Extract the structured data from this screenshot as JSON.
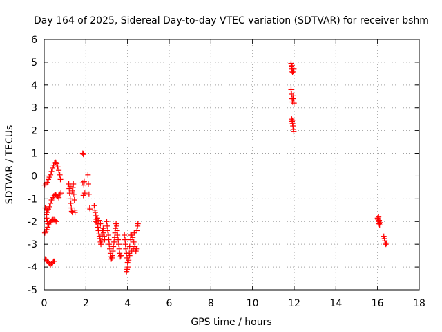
{
  "chart_data": {
    "type": "scatter",
    "title": "Day 164 of 2025, Sidereal Day-to-day VTEC variation (SDTVAR) for receiver bshm",
    "xlabel": "GPS time / hours",
    "ylabel": "SDTVAR / TECUs",
    "xlim": [
      0,
      18
    ],
    "ylim": [
      -5,
      6
    ],
    "xticks": [
      0,
      2,
      4,
      6,
      8,
      10,
      12,
      14,
      16,
      18
    ],
    "yticks": [
      -5,
      -4,
      -3,
      -2,
      -1,
      0,
      1,
      2,
      3,
      4,
      5,
      6
    ],
    "grid": true,
    "marker": "+",
    "colors": {
      "points": "#ff0000",
      "grid": "#a0a0a0",
      "axes": "#000000"
    },
    "series": [
      {
        "name": "SDTVAR",
        "points": [
          [
            0.02,
            -0.4
          ],
          [
            0.08,
            -0.35
          ],
          [
            0.14,
            -0.28
          ],
          [
            0.2,
            -0.15
          ],
          [
            0.25,
            -0.05
          ],
          [
            0.3,
            0.05
          ],
          [
            0.35,
            0.2
          ],
          [
            0.4,
            0.35
          ],
          [
            0.45,
            0.48
          ],
          [
            0.5,
            0.57
          ],
          [
            0.55,
            0.6
          ],
          [
            0.6,
            0.55
          ],
          [
            0.65,
            0.4
          ],
          [
            0.7,
            0.25
          ],
          [
            0.75,
            0.05
          ],
          [
            0.78,
            -0.15
          ],
          [
            0.05,
            -1.4
          ],
          [
            0.1,
            -1.45
          ],
          [
            0.15,
            -1.5
          ],
          [
            0.2,
            -1.45
          ],
          [
            0.25,
            -1.35
          ],
          [
            0.3,
            -1.2
          ],
          [
            0.35,
            -1.05
          ],
          [
            0.4,
            -0.95
          ],
          [
            0.45,
            -0.88
          ],
          [
            0.5,
            -0.85
          ],
          [
            0.55,
            -0.82
          ],
          [
            0.6,
            -0.85
          ],
          [
            0.65,
            -0.9
          ],
          [
            0.7,
            -0.95
          ],
          [
            0.75,
            -0.8
          ],
          [
            0.8,
            -0.75
          ],
          [
            0.03,
            -2.5
          ],
          [
            0.08,
            -2.45
          ],
          [
            0.12,
            -2.35
          ],
          [
            0.17,
            -2.25
          ],
          [
            0.22,
            -2.15
          ],
          [
            0.27,
            -2.05
          ],
          [
            0.32,
            -2.0
          ],
          [
            0.37,
            -1.95
          ],
          [
            0.42,
            -1.92
          ],
          [
            0.47,
            -1.92
          ],
          [
            0.52,
            -1.95
          ],
          [
            0.57,
            -2.0
          ],
          [
            0.05,
            -3.65
          ],
          [
            0.1,
            -3.7
          ],
          [
            0.15,
            -3.75
          ],
          [
            0.2,
            -3.8
          ],
          [
            0.25,
            -3.85
          ],
          [
            0.3,
            -3.9
          ],
          [
            0.35,
            -3.85
          ],
          [
            0.4,
            -3.8
          ],
          [
            0.45,
            -3.75
          ],
          [
            0.48,
            -3.75
          ],
          [
            0.1,
            -1.7
          ],
          [
            0.12,
            -1.85
          ],
          [
            0.15,
            -2.0
          ],
          [
            0.18,
            -2.1
          ],
          [
            0.13,
            -1.6
          ],
          [
            1.18,
            -0.35
          ],
          [
            1.2,
            -0.55
          ],
          [
            1.22,
            -0.75
          ],
          [
            1.25,
            -1.0
          ],
          [
            1.28,
            -1.2
          ],
          [
            1.3,
            -1.4
          ],
          [
            1.32,
            -1.55
          ],
          [
            1.35,
            -1.6
          ],
          [
            1.38,
            -0.5
          ],
          [
            1.4,
            -0.35
          ],
          [
            1.42,
            -0.8
          ],
          [
            1.45,
            -1.05
          ],
          [
            1.47,
            -1.5
          ],
          [
            1.48,
            -1.6
          ],
          [
            1.25,
            -0.45
          ],
          [
            1.35,
            -0.65
          ],
          [
            1.85,
            1.0
          ],
          [
            1.88,
            0.95
          ],
          [
            1.85,
            -0.3
          ],
          [
            1.9,
            -0.4
          ],
          [
            1.95,
            -0.75
          ],
          [
            1.88,
            -0.85
          ],
          [
            1.92,
            -0.25
          ],
          [
            2.1,
            0.05
          ],
          [
            2.12,
            -0.35
          ],
          [
            2.15,
            -0.8
          ],
          [
            2.18,
            -1.4
          ],
          [
            2.2,
            -1.45
          ],
          [
            2.4,
            -1.3
          ],
          [
            2.43,
            -1.5
          ],
          [
            2.45,
            -1.6
          ],
          [
            2.48,
            -1.75
          ],
          [
            2.5,
            -1.9
          ],
          [
            2.52,
            -2.05
          ],
          [
            2.55,
            -2.15
          ],
          [
            2.58,
            -2.25
          ],
          [
            2.6,
            -2.4
          ],
          [
            2.62,
            -2.55
          ],
          [
            2.65,
            -2.65
          ],
          [
            2.68,
            -2.75
          ],
          [
            2.7,
            -2.9
          ],
          [
            2.72,
            -3.0
          ],
          [
            2.75,
            -2.85
          ],
          [
            2.78,
            -2.6
          ],
          [
            2.8,
            -2.4
          ],
          [
            2.83,
            -2.3
          ],
          [
            2.85,
            -2.5
          ],
          [
            2.88,
            -2.65
          ],
          [
            2.9,
            -2.8
          ],
          [
            2.55,
            -1.85
          ],
          [
            2.62,
            -1.95
          ],
          [
            2.7,
            -2.1
          ],
          [
            2.48,
            -2.0
          ],
          [
            3.0,
            -2.0
          ],
          [
            3.02,
            -2.2
          ],
          [
            3.05,
            -2.4
          ],
          [
            3.08,
            -2.6
          ],
          [
            3.1,
            -2.8
          ],
          [
            3.12,
            -3.0
          ],
          [
            3.15,
            -3.2
          ],
          [
            3.18,
            -3.4
          ],
          [
            3.2,
            -3.55
          ],
          [
            3.22,
            -3.65
          ],
          [
            3.25,
            -3.6
          ],
          [
            3.28,
            -3.5
          ],
          [
            3.3,
            -3.3
          ],
          [
            3.32,
            -3.1
          ],
          [
            3.35,
            -2.9
          ],
          [
            3.38,
            -2.7
          ],
          [
            3.4,
            -2.5
          ],
          [
            3.42,
            -2.3
          ],
          [
            3.45,
            -2.1
          ],
          [
            3.48,
            -2.2
          ],
          [
            3.5,
            -2.4
          ],
          [
            3.52,
            -2.6
          ],
          [
            3.55,
            -2.8
          ],
          [
            3.58,
            -3.0
          ],
          [
            3.6,
            -3.2
          ],
          [
            3.62,
            -3.4
          ],
          [
            3.65,
            -3.55
          ],
          [
            3.68,
            -3.5
          ],
          [
            3.85,
            -2.6
          ],
          [
            3.88,
            -2.8
          ],
          [
            3.9,
            -3.0
          ],
          [
            3.92,
            -3.2
          ],
          [
            3.95,
            -3.4
          ],
          [
            3.98,
            -3.6
          ],
          [
            4.0,
            -3.8
          ],
          [
            4.02,
            -4.0
          ],
          [
            3.95,
            -4.2
          ],
          [
            3.98,
            -4.1
          ],
          [
            4.05,
            -3.7
          ],
          [
            4.08,
            -3.4
          ],
          [
            4.1,
            -3.1
          ],
          [
            4.15,
            -2.8
          ],
          [
            4.2,
            -2.6
          ],
          [
            4.25,
            -2.7
          ],
          [
            4.3,
            -2.9
          ],
          [
            4.35,
            -3.1
          ],
          [
            4.4,
            -3.3
          ],
          [
            4.42,
            -3.2
          ],
          [
            4.45,
            -2.4
          ],
          [
            4.48,
            -2.2
          ],
          [
            4.5,
            -2.1
          ],
          [
            4.1,
            -3.5
          ],
          [
            4.2,
            -3.3
          ],
          [
            4.28,
            -3.2
          ],
          [
            4.32,
            -2.5
          ],
          [
            4.15,
            -2.6
          ],
          [
            11.85,
            4.95
          ],
          [
            11.87,
            4.8
          ],
          [
            11.88,
            4.7
          ],
          [
            11.9,
            4.6
          ],
          [
            11.92,
            4.55
          ],
          [
            11.95,
            4.6
          ],
          [
            11.98,
            4.7
          ],
          [
            11.9,
            4.85
          ],
          [
            11.85,
            3.8
          ],
          [
            11.87,
            3.6
          ],
          [
            11.9,
            3.4
          ],
          [
            11.92,
            3.25
          ],
          [
            11.95,
            3.4
          ],
          [
            11.97,
            3.55
          ],
          [
            11.99,
            3.2
          ],
          [
            11.88,
            2.5
          ],
          [
            11.9,
            2.4
          ],
          [
            11.92,
            2.3
          ],
          [
            11.94,
            2.2
          ],
          [
            11.96,
            2.05
          ],
          [
            11.98,
            1.95
          ],
          [
            11.92,
            2.45
          ],
          [
            16.0,
            -1.85
          ],
          [
            16.02,
            -1.9
          ],
          [
            16.05,
            -2.0
          ],
          [
            16.08,
            -2.1
          ],
          [
            16.1,
            -2.15
          ],
          [
            16.05,
            -1.8
          ],
          [
            16.12,
            -2.05
          ],
          [
            16.08,
            -1.95
          ],
          [
            16.3,
            -2.65
          ],
          [
            16.33,
            -2.75
          ],
          [
            16.35,
            -2.85
          ],
          [
            16.38,
            -2.95
          ],
          [
            16.4,
            -3.0
          ],
          [
            16.42,
            -2.95
          ]
        ]
      }
    ]
  }
}
